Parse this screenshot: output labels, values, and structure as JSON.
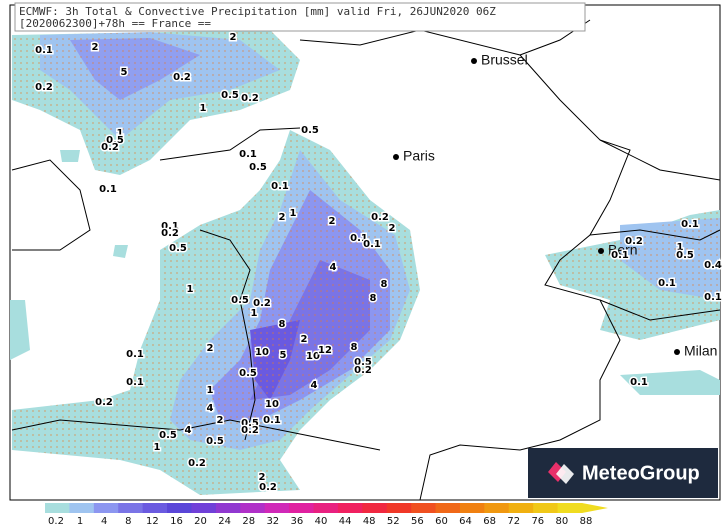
{
  "header": {
    "line1": "ECMWF: 3h Total & Convective Precipitation [mm] valid Fri, 26JUN2020 06Z",
    "line2": "[2020062300]+78h  == France =="
  },
  "cities": [
    "Brussel",
    "Paris",
    "Bern",
    "Milan"
  ],
  "contour_labels": [
    "0.1",
    "2",
    "2",
    "5",
    "0.2",
    "0.2",
    "0.5",
    "0.2",
    "1",
    "0.5",
    "1",
    "0.5",
    "0.2",
    "0.1",
    "0.5",
    "0.1",
    "0.1",
    "1",
    "2",
    "2",
    "0.2",
    "2",
    "0.1",
    "0.2",
    "0.1",
    "0.1",
    "0.5",
    "4",
    "8",
    "8",
    "1",
    "0.5",
    "0.2",
    "1",
    "10",
    "8",
    "5",
    "2",
    "8",
    "10",
    "12",
    "0.5",
    "0.2",
    "2",
    "0.1",
    "0.1",
    "0.5",
    "4",
    "1",
    "0.2",
    "10",
    "0.1",
    "4",
    "2",
    "0.5",
    "0.2",
    "0.5",
    "4",
    "1",
    "0.5",
    "0.2",
    "2",
    "0.2",
    "0.1",
    "0.2",
    "0.1",
    "1",
    "0.5",
    "0.4",
    "0.1",
    "0.1",
    "0.1"
  ],
  "colorbar": {
    "ticks": [
      0.2,
      1,
      4,
      8,
      12,
      16,
      20,
      24,
      28,
      32,
      36,
      40,
      44,
      48,
      52,
      56,
      60,
      64,
      68,
      72,
      76,
      80,
      88
    ],
    "colors": [
      "#a8dede",
      "#9fc4f0",
      "#8c96f0",
      "#7a74e6",
      "#6a5ae0",
      "#5a46d8",
      "#7040d8",
      "#9038d0",
      "#b030c8",
      "#d028b8",
      "#e020a0",
      "#e82080",
      "#f02060",
      "#f02840",
      "#f03828",
      "#f05020",
      "#f06818",
      "#f08010",
      "#f09810",
      "#f0b010",
      "#f0c818",
      "#f0dc20"
    ]
  },
  "logo": "MeteoGroup"
}
